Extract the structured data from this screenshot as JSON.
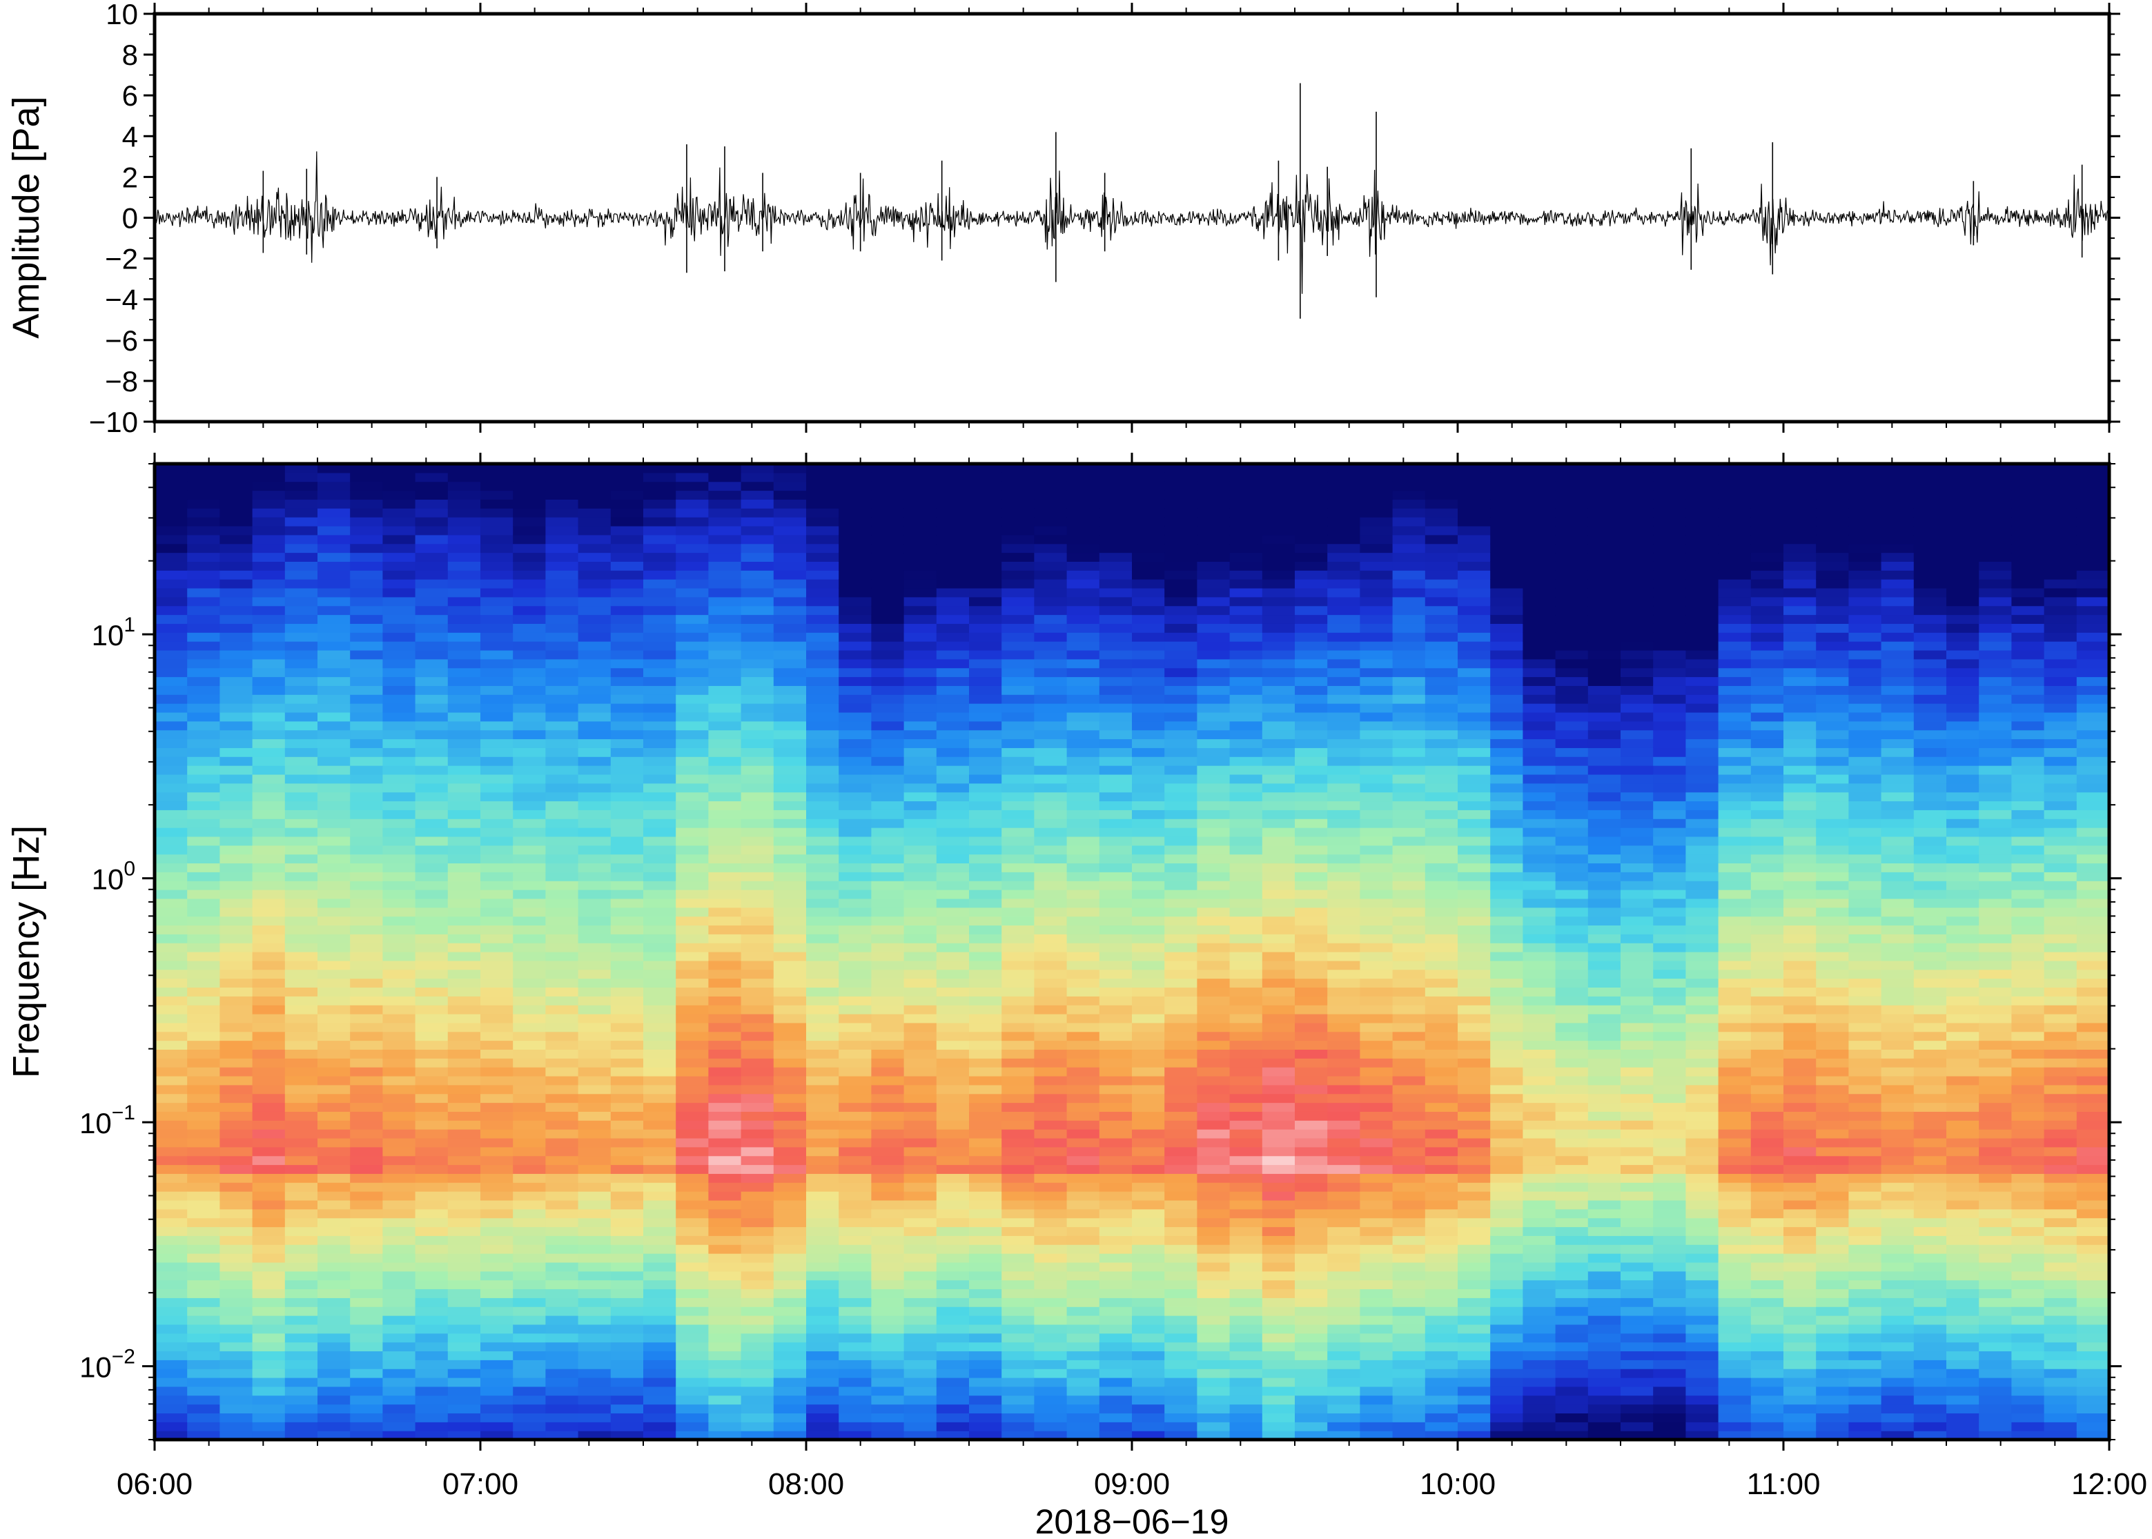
{
  "chart_data": [
    {
      "type": "line",
      "panel": "waveform",
      "ylabel": "Amplitude [Pa]",
      "ylim": [
        -10,
        10
      ],
      "yticks": [
        10,
        8,
        6,
        4,
        2,
        0,
        -2,
        -4,
        -6,
        -8,
        -10
      ],
      "ytick_labels": [
        "10",
        "8",
        "6",
        "4",
        "2",
        "0",
        "−2",
        "−4",
        "−6",
        "−8",
        "−10"
      ],
      "xlim": [
        "2018-06-19 06:00",
        "2018-06-19 12:00"
      ],
      "x_unit": "hours",
      "baseline_noise_pa": 0.35,
      "bursts": [
        {
          "time": "06:20",
          "duration_min": 15,
          "peak_pa": 2.3
        },
        {
          "time": "06:28",
          "duration_min": 8,
          "peak_pa": 2.4
        },
        {
          "time": "06:52",
          "duration_min": 6,
          "peak_pa": 2.0
        },
        {
          "time": "07:38",
          "duration_min": 5,
          "peak_pa": 3.6
        },
        {
          "time": "07:45",
          "duration_min": 6,
          "peak_pa": 3.5
        },
        {
          "time": "07:52",
          "duration_min": 5,
          "peak_pa": 2.2
        },
        {
          "time": "08:10",
          "duration_min": 10,
          "peak_pa": 2.2
        },
        {
          "time": "08:25",
          "duration_min": 8,
          "peak_pa": 2.8
        },
        {
          "time": "08:46",
          "duration_min": 4,
          "peak_pa": 4.2
        },
        {
          "time": "08:55",
          "duration_min": 5,
          "peak_pa": 2.2
        },
        {
          "time": "09:27",
          "duration_min": 6,
          "peak_pa": 2.8
        },
        {
          "time": "09:31",
          "duration_min": 3,
          "peak_pa": 6.6
        },
        {
          "time": "09:36",
          "duration_min": 5,
          "peak_pa": 2.5
        },
        {
          "time": "09:45",
          "duration_min": 4,
          "peak_pa": 5.2
        },
        {
          "time": "10:43",
          "duration_min": 4,
          "peak_pa": 3.4
        },
        {
          "time": "10:58",
          "duration_min": 5,
          "peak_pa": 3.7
        },
        {
          "time": "11:35",
          "duration_min": 4,
          "peak_pa": 1.8
        },
        {
          "time": "11:55",
          "duration_min": 6,
          "peak_pa": 2.6
        }
      ]
    },
    {
      "type": "heatmap",
      "panel": "spectrogram",
      "ylabel": "Frequency [Hz]",
      "yscale": "log",
      "ylim": [
        0.005,
        50
      ],
      "yticks": [
        0.01,
        0.1,
        1,
        10
      ],
      "ytick_labels": [
        {
          "base": "10",
          "exp": "−2"
        },
        {
          "base": "10",
          "exp": "−1"
        },
        {
          "base": "10",
          "exp": "0"
        },
        {
          "base": "10",
          "exp": "1"
        }
      ],
      "xlim": [
        "2018-06-19 06:00",
        "2018-06-19 12:00"
      ],
      "xticks": [
        "06:00",
        "07:00",
        "08:00",
        "09:00",
        "10:00",
        "11:00",
        "12:00"
      ],
      "xlabel": "2018−06−19",
      "colormap": [
        "#fbd7d7",
        "#f45a5a",
        "#f8a24a",
        "#f2e58a",
        "#a8f0b0",
        "#4ed8e6",
        "#1e86f2",
        "#1a2fd4",
        "#06086e"
      ],
      "time_columns": 60,
      "column_minutes": 6,
      "level_note": "relative power 0 (dark navy) to 1 (pale pink)",
      "high_frequency_cutoff_hz": [
        16,
        22,
        20,
        25,
        30,
        34,
        24,
        22,
        26,
        23,
        22,
        20,
        24,
        22,
        21,
        26,
        30,
        29,
        31,
        27,
        20,
        9,
        7,
        10,
        12,
        11,
        14,
        15,
        15,
        14,
        12,
        10,
        13,
        14,
        13,
        15,
        16,
        17,
        22,
        20,
        18,
        10,
        5.5,
        5,
        4.5,
        5,
        5.5,
        6,
        12,
        11,
        14,
        13,
        12,
        15,
        10,
        9,
        12,
        11,
        10,
        12
      ],
      "low_frequency_peak_level": [
        0.8,
        0.82,
        0.86,
        0.9,
        0.84,
        0.83,
        0.85,
        0.82,
        0.81,
        0.82,
        0.81,
        0.8,
        0.79,
        0.78,
        0.79,
        0.77,
        0.9,
        0.95,
        0.94,
        0.88,
        0.78,
        0.82,
        0.86,
        0.84,
        0.8,
        0.81,
        0.86,
        0.88,
        0.87,
        0.85,
        0.84,
        0.88,
        0.94,
        0.92,
        0.98,
        0.95,
        0.92,
        0.89,
        0.88,
        0.86,
        0.84,
        0.74,
        0.7,
        0.68,
        0.66,
        0.68,
        0.66,
        0.7,
        0.83,
        0.85,
        0.88,
        0.84,
        0.82,
        0.8,
        0.81,
        0.82,
        0.83,
        0.84,
        0.86,
        0.88
      ]
    }
  ]
}
